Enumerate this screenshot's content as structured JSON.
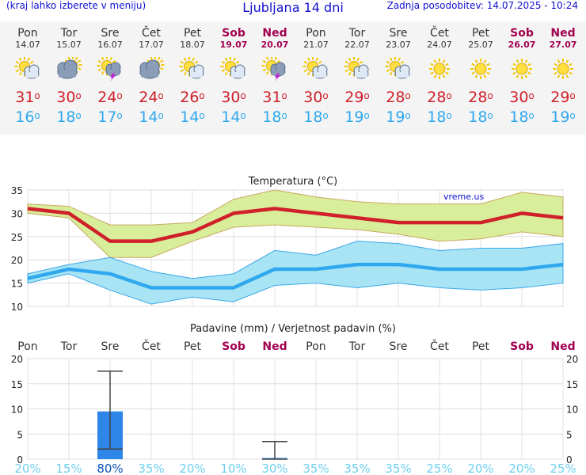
{
  "header": {
    "menu_hint": "(kraj lahko izberete v meniju)",
    "title": "Ljubljana 14 dni",
    "updated": "Zadnja posodobitev: 14.07.2025 - 10:24"
  },
  "days": [
    {
      "name": "Pon",
      "date": "14.07",
      "weekend": false,
      "icon": "sun-cloud-icon",
      "tmax": 31,
      "tmin": 16
    },
    {
      "name": "Tor",
      "date": "15.07",
      "weekend": false,
      "icon": "cloud-sun-icon",
      "tmax": 30,
      "tmin": 18
    },
    {
      "name": "Sre",
      "date": "16.07",
      "weekend": false,
      "icon": "sun-storm-icon",
      "tmax": 24,
      "tmin": 17
    },
    {
      "name": "Čet",
      "date": "17.07",
      "weekend": false,
      "icon": "cloud-sun-icon",
      "tmax": 24,
      "tmin": 14
    },
    {
      "name": "Pet",
      "date": "18.07",
      "weekend": false,
      "icon": "sun-cloud-icon",
      "tmax": 26,
      "tmin": 14
    },
    {
      "name": "Sob",
      "date": "19.07",
      "weekend": true,
      "icon": "sun-cloud-icon",
      "tmax": 30,
      "tmin": 14
    },
    {
      "name": "Ned",
      "date": "20.07",
      "weekend": true,
      "icon": "sun-storm-icon",
      "tmax": 31,
      "tmin": 18
    },
    {
      "name": "Pon",
      "date": "21.07",
      "weekend": false,
      "icon": "sun-cloud-icon",
      "tmax": 30,
      "tmin": 18
    },
    {
      "name": "Tor",
      "date": "22.07",
      "weekend": false,
      "icon": "sun-cloud-icon",
      "tmax": 29,
      "tmin": 19
    },
    {
      "name": "Sre",
      "date": "23.07",
      "weekend": false,
      "icon": "sun-cloud-icon",
      "tmax": 28,
      "tmin": 19
    },
    {
      "name": "Čet",
      "date": "24.07",
      "weekend": false,
      "icon": "sun-icon",
      "tmax": 28,
      "tmin": 18
    },
    {
      "name": "Pet",
      "date": "25.07",
      "weekend": false,
      "icon": "sun-icon",
      "tmax": 28,
      "tmin": 18
    },
    {
      "name": "Sob",
      "date": "26.07",
      "weekend": true,
      "icon": "sun-icon",
      "tmax": 30,
      "tmin": 18
    },
    {
      "name": "Ned",
      "date": "27.07",
      "weekend": true,
      "icon": "sun-icon",
      "tmax": 29,
      "tmin": 19
    }
  ],
  "degree_symbol": "o",
  "colors": {
    "tmax": "#d0202a",
    "tmin": "#30a8ee",
    "tmax_band": "#d8ee9a",
    "tmin_band": "#a8e4f4",
    "precip": "#2d86e8",
    "weekend": "#a00050",
    "link": "#1010d0"
  },
  "chart_data": [
    {
      "type": "line",
      "title": "Temperatura (°C)",
      "watermark": "vreme.us",
      "x": [
        "14.07",
        "15.07",
        "16.07",
        "17.07",
        "18.07",
        "19.07",
        "20.07",
        "21.07",
        "22.07",
        "23.07",
        "24.07",
        "25.07",
        "26.07",
        "27.07"
      ],
      "series": [
        {
          "name": "tmax",
          "values": [
            31,
            30,
            24,
            24,
            26,
            30,
            31,
            30,
            29,
            28,
            28,
            28,
            30,
            29
          ],
          "band_low": [
            30,
            29,
            20.5,
            20.5,
            24,
            27,
            27.5,
            27,
            26.5,
            25.5,
            24,
            24.5,
            26,
            25
          ],
          "band_high": [
            32,
            31.5,
            27.5,
            27.5,
            28,
            33,
            35,
            33.5,
            32.5,
            32,
            32,
            32,
            34.5,
            33.5
          ]
        },
        {
          "name": "tmin",
          "values": [
            16,
            18,
            17,
            14,
            14,
            14,
            18,
            18,
            19,
            19,
            18,
            18,
            18,
            19
          ],
          "band_low": [
            15,
            17,
            13.5,
            10.5,
            12,
            11,
            14.5,
            15,
            14,
            15,
            14,
            13.5,
            14,
            15
          ],
          "band_high": [
            17,
            19,
            20.5,
            17.5,
            16,
            17,
            22,
            21,
            24,
            23.5,
            22,
            22.5,
            22.5,
            23.5
          ]
        }
      ],
      "ylim": [
        10,
        35
      ],
      "yticks": [
        10,
        15,
        20,
        25,
        30,
        35
      ],
      "grid": true
    },
    {
      "type": "bar",
      "title": "Padavine (mm) / Verjetnost padavin (%)",
      "categories": [
        "Pon",
        "Tor",
        "Sre",
        "Čet",
        "Pet",
        "Sob",
        "Ned",
        "Pon",
        "Tor",
        "Sre",
        "Čet",
        "Pet",
        "Sob",
        "Ned"
      ],
      "values": [
        0,
        0,
        9.5,
        0,
        0,
        0,
        0.2,
        0,
        0,
        0,
        0,
        0,
        0,
        0
      ],
      "error_low": [
        null,
        null,
        2,
        null,
        null,
        null,
        0,
        null,
        null,
        null,
        null,
        null,
        null,
        null
      ],
      "error_high": [
        null,
        null,
        17.5,
        null,
        null,
        null,
        3.5,
        null,
        null,
        null,
        null,
        null,
        null,
        null
      ],
      "probability": [
        "20%",
        "15%",
        "80%",
        "35%",
        "20%",
        "10%",
        "30%",
        "35%",
        "35%",
        "35%",
        "25%",
        "20%",
        "20%",
        "25%"
      ],
      "ylim": [
        0,
        20
      ],
      "yticks": [
        0,
        5,
        10,
        15,
        20
      ],
      "grid": true
    }
  ]
}
